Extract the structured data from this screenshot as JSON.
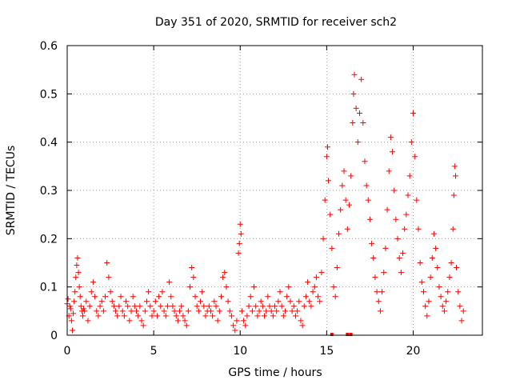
{
  "chart_data": {
    "type": "scatter",
    "title": "Day 351 of 2020, SRMTID for receiver sch2",
    "xlabel": "GPS time / hours",
    "ylabel": "SRMTID / TECUs",
    "xlim": [
      0,
      24
    ],
    "ylim": [
      0,
      0.6
    ],
    "xticks": [
      0,
      5,
      10,
      15,
      20
    ],
    "xtick_labels": [
      "0",
      "5",
      "10",
      "15",
      "20"
    ],
    "yticks": [
      0,
      0.1,
      0.2,
      0.3,
      0.4,
      0.5,
      0.6
    ],
    "ytick_labels": [
      "0",
      "0.1",
      "0.2",
      "0.3",
      "0.4",
      "0.5",
      "0.6"
    ],
    "grid": true,
    "marker": "+",
    "marker_color": "#ff0000",
    "series": [
      {
        "name": "sch2",
        "points": [
          [
            0.0,
            0.065
          ],
          [
            0.05,
            0.075
          ],
          [
            0.1,
            0.04
          ],
          [
            0.15,
            0.06
          ],
          [
            0.2,
            0.055
          ],
          [
            0.25,
            0.03
          ],
          [
            0.3,
            0.01
          ],
          [
            0.35,
            0.045
          ],
          [
            0.4,
            0.07
          ],
          [
            0.45,
            0.09
          ],
          [
            0.5,
            0.12
          ],
          [
            0.55,
            0.145
          ],
          [
            0.6,
            0.16
          ],
          [
            0.65,
            0.13
          ],
          [
            0.7,
            0.1
          ],
          [
            0.75,
            0.08
          ],
          [
            0.8,
            0.06
          ],
          [
            0.85,
            0.05
          ],
          [
            0.9,
            0.04
          ],
          [
            0.95,
            0.055
          ],
          [
            1.0,
            0.05
          ],
          [
            1.1,
            0.07
          ],
          [
            1.2,
            0.03
          ],
          [
            1.3,
            0.06
          ],
          [
            1.4,
            0.09
          ],
          [
            1.5,
            0.11
          ],
          [
            1.6,
            0.08
          ],
          [
            1.7,
            0.05
          ],
          [
            1.8,
            0.04
          ],
          [
            1.9,
            0.06
          ],
          [
            2.0,
            0.07
          ],
          [
            2.1,
            0.05
          ],
          [
            2.2,
            0.08
          ],
          [
            2.3,
            0.15
          ],
          [
            2.4,
            0.12
          ],
          [
            2.5,
            0.09
          ],
          [
            2.6,
            0.07
          ],
          [
            2.7,
            0.06
          ],
          [
            2.8,
            0.05
          ],
          [
            2.9,
            0.04
          ],
          [
            3.0,
            0.06
          ],
          [
            3.1,
            0.08
          ],
          [
            3.2,
            0.05
          ],
          [
            3.3,
            0.04
          ],
          [
            3.4,
            0.07
          ],
          [
            3.5,
            0.06
          ],
          [
            3.6,
            0.03
          ],
          [
            3.7,
            0.05
          ],
          [
            3.8,
            0.08
          ],
          [
            3.9,
            0.06
          ],
          [
            4.0,
            0.05
          ],
          [
            4.1,
            0.04
          ],
          [
            4.2,
            0.06
          ],
          [
            4.3,
            0.03
          ],
          [
            4.4,
            0.02
          ],
          [
            4.5,
            0.05
          ],
          [
            4.6,
            0.07
          ],
          [
            4.7,
            0.09
          ],
          [
            4.8,
            0.06
          ],
          [
            4.9,
            0.04
          ],
          [
            5.0,
            0.05
          ],
          [
            5.1,
            0.07
          ],
          [
            5.2,
            0.04
          ],
          [
            5.3,
            0.08
          ],
          [
            5.4,
            0.06
          ],
          [
            5.5,
            0.09
          ],
          [
            5.6,
            0.05
          ],
          [
            5.7,
            0.04
          ],
          [
            5.8,
            0.06
          ],
          [
            5.9,
            0.11
          ],
          [
            6.0,
            0.08
          ],
          [
            6.1,
            0.06
          ],
          [
            6.2,
            0.05
          ],
          [
            6.3,
            0.04
          ],
          [
            6.4,
            0.03
          ],
          [
            6.5,
            0.05
          ],
          [
            6.6,
            0.06
          ],
          [
            6.7,
            0.04
          ],
          [
            6.8,
            0.03
          ],
          [
            6.9,
            0.02
          ],
          [
            7.0,
            0.05
          ],
          [
            7.1,
            0.1
          ],
          [
            7.2,
            0.14
          ],
          [
            7.3,
            0.12
          ],
          [
            7.4,
            0.08
          ],
          [
            7.5,
            0.06
          ],
          [
            7.6,
            0.05
          ],
          [
            7.7,
            0.07
          ],
          [
            7.8,
            0.09
          ],
          [
            7.9,
            0.06
          ],
          [
            8.0,
            0.04
          ],
          [
            8.1,
            0.05
          ],
          [
            8.2,
            0.06
          ],
          [
            8.3,
            0.05
          ],
          [
            8.4,
            0.04
          ],
          [
            8.5,
            0.07
          ],
          [
            8.6,
            0.06
          ],
          [
            8.7,
            0.03
          ],
          [
            8.8,
            0.05
          ],
          [
            8.9,
            0.08
          ],
          [
            9.0,
            0.12
          ],
          [
            9.1,
            0.13
          ],
          [
            9.2,
            0.1
          ],
          [
            9.3,
            0.07
          ],
          [
            9.4,
            0.05
          ],
          [
            9.5,
            0.04
          ],
          [
            9.6,
            0.02
          ],
          [
            9.7,
            0.01
          ],
          [
            9.8,
            0.03
          ],
          [
            9.9,
            0.17
          ],
          [
            9.95,
            0.19
          ],
          [
            10.0,
            0.23
          ],
          [
            10.05,
            0.21
          ],
          [
            10.1,
            0.05
          ],
          [
            10.2,
            0.03
          ],
          [
            10.3,
            0.02
          ],
          [
            10.4,
            0.04
          ],
          [
            10.5,
            0.06
          ],
          [
            10.6,
            0.08
          ],
          [
            10.7,
            0.05
          ],
          [
            10.8,
            0.1
          ],
          [
            10.9,
            0.06
          ],
          [
            11.0,
            0.04
          ],
          [
            11.1,
            0.05
          ],
          [
            11.2,
            0.07
          ],
          [
            11.3,
            0.06
          ],
          [
            11.4,
            0.04
          ],
          [
            11.5,
            0.05
          ],
          [
            11.6,
            0.08
          ],
          [
            11.7,
            0.06
          ],
          [
            11.8,
            0.05
          ],
          [
            11.9,
            0.04
          ],
          [
            12.0,
            0.06
          ],
          [
            12.1,
            0.05
          ],
          [
            12.2,
            0.07
          ],
          [
            12.3,
            0.09
          ],
          [
            12.4,
            0.06
          ],
          [
            12.5,
            0.04
          ],
          [
            12.6,
            0.05
          ],
          [
            12.7,
            0.08
          ],
          [
            12.8,
            0.1
          ],
          [
            12.9,
            0.07
          ],
          [
            13.0,
            0.05
          ],
          [
            13.1,
            0.06
          ],
          [
            13.2,
            0.04
          ],
          [
            13.3,
            0.05
          ],
          [
            13.4,
            0.07
          ],
          [
            13.5,
            0.03
          ],
          [
            13.6,
            0.02
          ],
          [
            13.7,
            0.06
          ],
          [
            13.8,
            0.08
          ],
          [
            13.9,
            0.11
          ],
          [
            14.0,
            0.07
          ],
          [
            14.1,
            0.06
          ],
          [
            14.2,
            0.09
          ],
          [
            14.3,
            0.1
          ],
          [
            14.4,
            0.12
          ],
          [
            14.5,
            0.08
          ],
          [
            14.6,
            0.07
          ],
          [
            14.7,
            0.13
          ],
          [
            14.8,
            0.2
          ],
          [
            14.9,
            0.28
          ],
          [
            15.0,
            0.37
          ],
          [
            15.05,
            0.39
          ],
          [
            15.1,
            0.32
          ],
          [
            15.2,
            0.25
          ],
          [
            15.3,
            0.18
          ],
          [
            15.4,
            0.1
          ],
          [
            15.5,
            0.08
          ],
          [
            15.6,
            0.14
          ],
          [
            15.7,
            0.21
          ],
          [
            15.8,
            0.26
          ],
          [
            15.9,
            0.31
          ],
          [
            16.0,
            0.34
          ],
          [
            16.1,
            0.28
          ],
          [
            16.2,
            0.22
          ],
          [
            16.3,
            0.27
          ],
          [
            16.4,
            0.33
          ],
          [
            16.5,
            0.44
          ],
          [
            16.55,
            0.5
          ],
          [
            16.6,
            0.54
          ],
          [
            16.7,
            0.47
          ],
          [
            16.8,
            0.4
          ],
          [
            16.9,
            0.46
          ],
          [
            17.0,
            0.53
          ],
          [
            17.1,
            0.44
          ],
          [
            17.2,
            0.36
          ],
          [
            17.3,
            0.31
          ],
          [
            17.4,
            0.28
          ],
          [
            17.5,
            0.24
          ],
          [
            17.6,
            0.19
          ],
          [
            17.7,
            0.16
          ],
          [
            17.8,
            0.12
          ],
          [
            17.9,
            0.09
          ],
          [
            18.0,
            0.07
          ],
          [
            18.1,
            0.05
          ],
          [
            18.2,
            0.09
          ],
          [
            18.3,
            0.13
          ],
          [
            18.4,
            0.18
          ],
          [
            18.5,
            0.26
          ],
          [
            18.6,
            0.34
          ],
          [
            18.7,
            0.41
          ],
          [
            18.8,
            0.38
          ],
          [
            18.9,
            0.3
          ],
          [
            19.0,
            0.24
          ],
          [
            19.1,
            0.2
          ],
          [
            19.2,
            0.16
          ],
          [
            19.3,
            0.13
          ],
          [
            19.4,
            0.17
          ],
          [
            19.5,
            0.22
          ],
          [
            19.6,
            0.25
          ],
          [
            19.7,
            0.29
          ],
          [
            19.8,
            0.33
          ],
          [
            19.9,
            0.4
          ],
          [
            20.0,
            0.46
          ],
          [
            20.1,
            0.37
          ],
          [
            20.2,
            0.28
          ],
          [
            20.3,
            0.22
          ],
          [
            20.4,
            0.15
          ],
          [
            20.5,
            0.11
          ],
          [
            20.6,
            0.09
          ],
          [
            20.7,
            0.06
          ],
          [
            20.8,
            0.04
          ],
          [
            20.9,
            0.07
          ],
          [
            21.0,
            0.12
          ],
          [
            21.1,
            0.16
          ],
          [
            21.2,
            0.21
          ],
          [
            21.3,
            0.18
          ],
          [
            21.4,
            0.14
          ],
          [
            21.5,
            0.1
          ],
          [
            21.6,
            0.08
          ],
          [
            21.7,
            0.06
          ],
          [
            21.8,
            0.05
          ],
          [
            21.9,
            0.07
          ],
          [
            22.0,
            0.09
          ],
          [
            22.1,
            0.12
          ],
          [
            22.2,
            0.15
          ],
          [
            22.3,
            0.22
          ],
          [
            22.35,
            0.29
          ],
          [
            22.4,
            0.35
          ],
          [
            22.45,
            0.33
          ],
          [
            22.5,
            0.14
          ],
          [
            22.6,
            0.09
          ],
          [
            22.7,
            0.06
          ],
          [
            22.8,
            0.03
          ],
          [
            22.9,
            0.05
          ]
        ]
      }
    ],
    "zero_markers": [
      15.3,
      16.2,
      16.4
    ]
  }
}
